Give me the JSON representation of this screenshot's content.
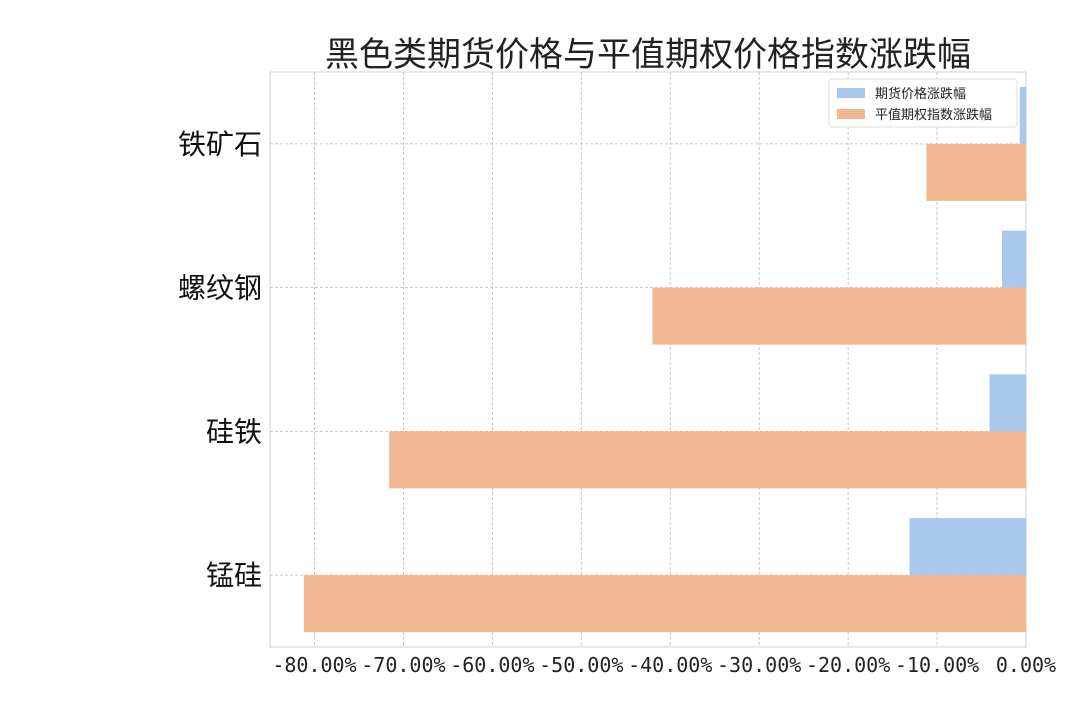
{
  "chart_data": {
    "type": "bar",
    "orientation": "horizontal",
    "title": "黑色类期货价格与平值期权价格指数涨跌幅",
    "xlabel": "",
    "ylabel": "",
    "categories": [
      "铁矿石",
      "螺纹钢",
      "硅铁",
      "锰硅"
    ],
    "series": [
      {
        "name": "期货价格涨跌幅",
        "color": "#a9c8ec",
        "values": [
          -0.7,
          -2.7,
          -4.1,
          -13.1
        ]
      },
      {
        "name": "平值期权指数涨跌幅",
        "color": "#f0b890",
        "values": [
          -11.2,
          -42.0,
          -71.6,
          -81.2
        ]
      }
    ],
    "xlim": [
      -85,
      0
    ],
    "xticks": [
      -80,
      -70,
      -60,
      -50,
      -40,
      -30,
      -20,
      -10,
      0
    ],
    "xtick_labels": [
      "-80.00%",
      "-70.00%",
      "-60.00%",
      "-50.00%",
      "-40.00%",
      "-30.00%",
      "-20.00%",
      "-10.00%",
      "0.00%"
    ],
    "grid": true,
    "legend_position": "top-right"
  }
}
